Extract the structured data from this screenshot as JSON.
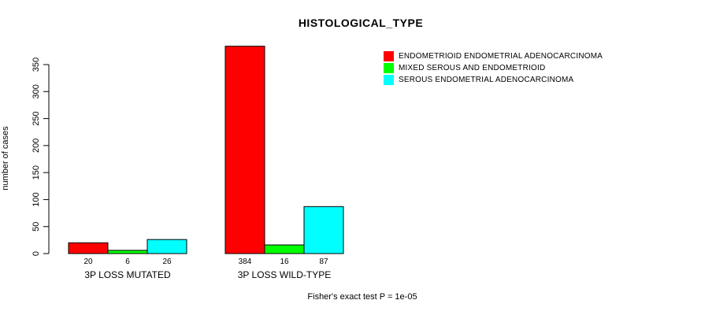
{
  "chart_data": {
    "type": "bar",
    "title": "HISTOLOGICAL_TYPE",
    "xlabel": "",
    "ylabel": "number of cases",
    "ylim": [
      0,
      350
    ],
    "yticks": [
      0,
      50,
      100,
      150,
      200,
      250,
      300,
      350
    ],
    "grid": false,
    "legend_position": "top-right",
    "categories": [
      "3P LOSS MUTATED",
      "3P LOSS WILD-TYPE"
    ],
    "series": [
      {
        "name": "ENDOMETRIOID ENDOMETRIAL ADENOCARCINOMA",
        "color": "#ff0000",
        "values": [
          20,
          384
        ]
      },
      {
        "name": "MIXED SEROUS AND ENDOMETRIOID",
        "color": "#00ff00",
        "values": [
          6,
          16
        ]
      },
      {
        "name": "SEROUS ENDOMETRIAL ADENOCARCINOMA",
        "color": "#00ffff",
        "values": [
          26,
          87
        ]
      }
    ],
    "annotation": "Fisher's exact test P = 1e-05"
  }
}
